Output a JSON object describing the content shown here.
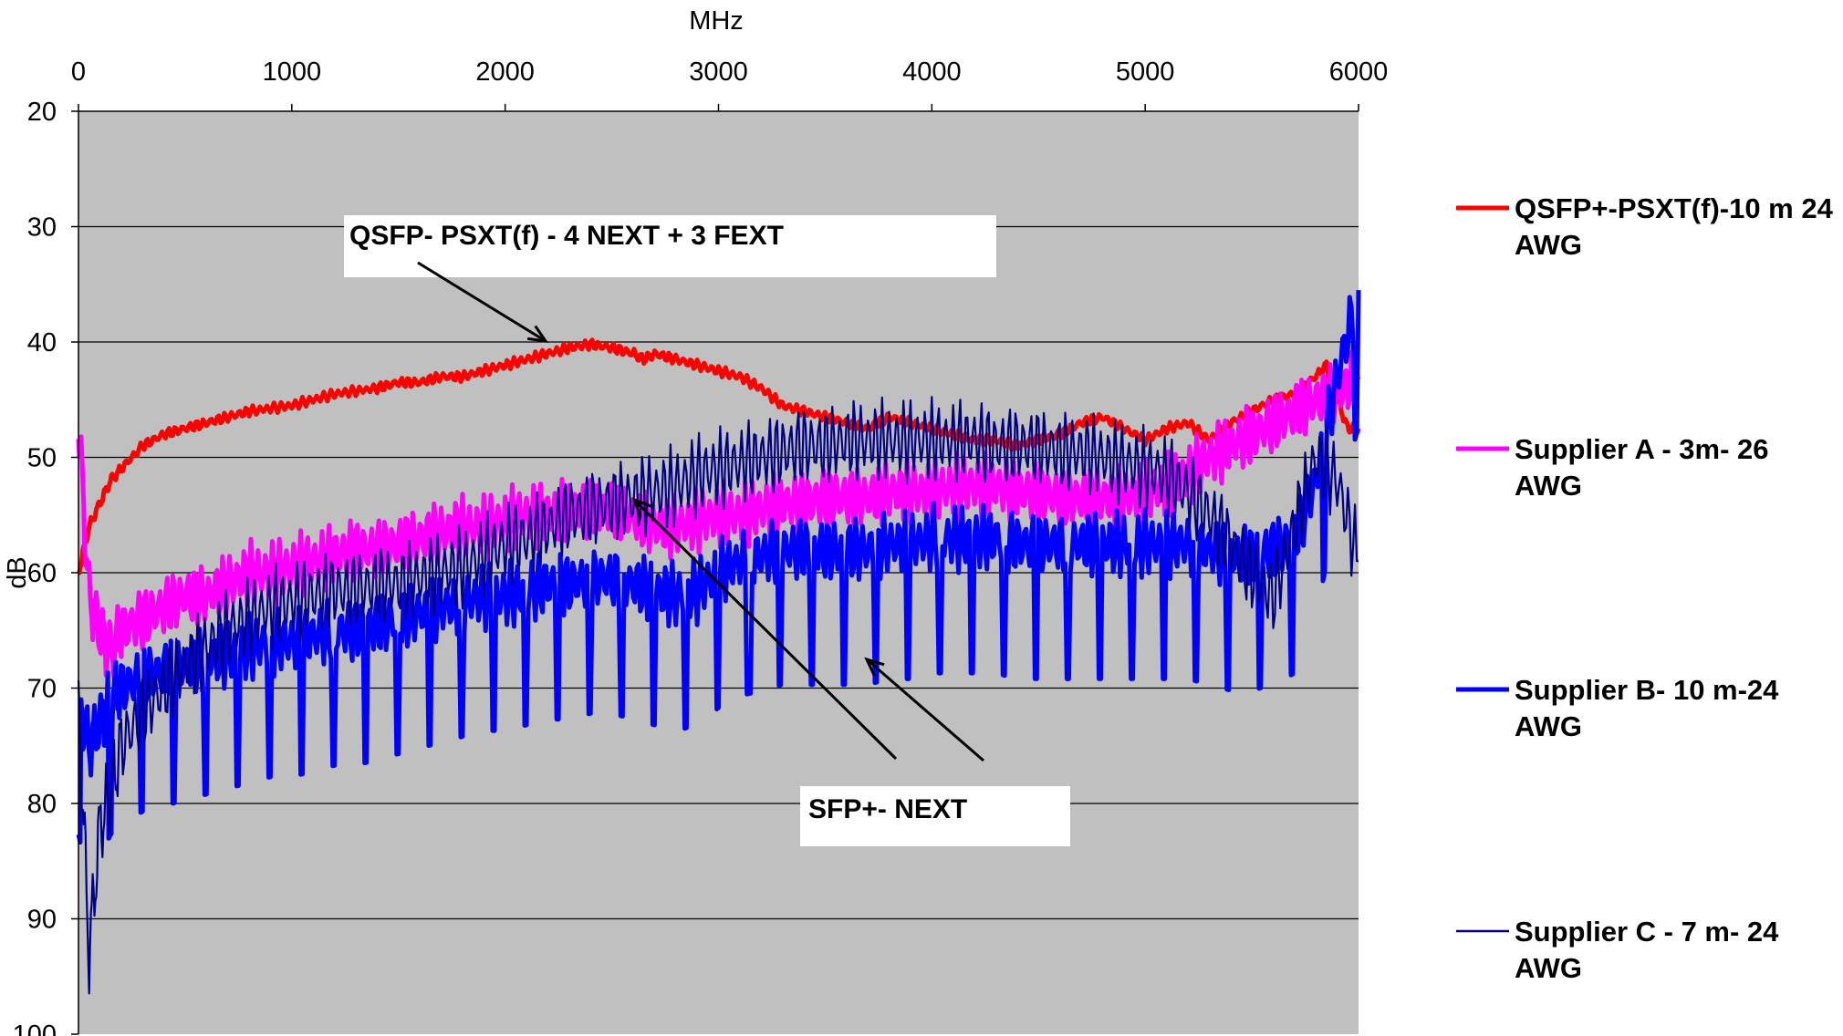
{
  "chart_data": {
    "type": "line",
    "xlabel": "MHz",
    "ylabel": "dB",
    "xlim": [
      0,
      6000
    ],
    "ylim": [
      20,
      100
    ],
    "y_inverted": true,
    "x_axis_position": "top",
    "x_ticks": [
      "0",
      "1000",
      "2000",
      "3000",
      "4000",
      "5000",
      "6000"
    ],
    "y_ticks": [
      "20",
      "30",
      "40",
      "50",
      "60",
      "70",
      "80",
      "90",
      "100"
    ],
    "grid": "horizontal",
    "plot_background": "#c0c0c0",
    "legend_position": "right",
    "series": [
      {
        "name": "QSFP+-PSXT(f)-10 m 24 AWG",
        "color": "#ff0000",
        "x": [
          0,
          50,
          100,
          150,
          200,
          300,
          400,
          500,
          600,
          700,
          800,
          1000,
          1200,
          1400,
          1500,
          1600,
          1700,
          1800,
          1900,
          2000,
          2100,
          2200,
          2300,
          2400,
          2500,
          2600,
          2650,
          2700,
          2800,
          2900,
          3000,
          3100,
          3200,
          3300,
          3400,
          3500,
          3600,
          3700,
          3800,
          3900,
          4000,
          4100,
          4200,
          4300,
          4400,
          4500,
          4600,
          4700,
          4800,
          4900,
          5000,
          5100,
          5200,
          5300,
          5400,
          5500,
          5600,
          5700,
          5800,
          5850,
          5900,
          5950,
          6000
        ],
        "y": [
          60,
          56,
          54,
          52,
          51,
          49,
          48,
          47.5,
          47,
          46.5,
          46,
          45.5,
          44.5,
          44,
          43.5,
          43.5,
          43,
          43,
          42.5,
          42,
          41.5,
          41,
          40.5,
          40.2,
          40.5,
          41,
          41.5,
          41,
          41.5,
          42,
          42.5,
          43,
          44,
          45.5,
          46,
          46.5,
          47,
          47.5,
          46.5,
          47,
          47.5,
          48,
          48.5,
          48.5,
          49,
          48.5,
          48,
          47,
          46.5,
          47.5,
          48.5,
          47.5,
          47,
          48.5,
          47,
          46,
          45,
          44.5,
          43,
          42,
          45,
          47.5,
          47.5
        ]
      },
      {
        "name": "Supplier A - 3m- 26 AWG",
        "color": "#ff00ff",
        "x": [
          0,
          50,
          100,
          150,
          200,
          300,
          400,
          500,
          600,
          700,
          800,
          900,
          1000,
          1100,
          1200,
          1300,
          1400,
          1500,
          1600,
          1700,
          1800,
          1900,
          2000,
          2100,
          2200,
          2300,
          2400,
          2500,
          2600,
          2700,
          2800,
          2900,
          3000,
          3100,
          3200,
          3300,
          3400,
          3500,
          3600,
          3700,
          3800,
          3900,
          4000,
          4100,
          4200,
          4300,
          4400,
          4500,
          4600,
          4700,
          4800,
          4900,
          5000,
          5100,
          5200,
          5300,
          5400,
          5500,
          5600,
          5700,
          5800,
          5900,
          6000
        ],
        "y": [
          47,
          62,
          65,
          67,
          65,
          64,
          63,
          62,
          62,
          61,
          60,
          60,
          59.5,
          59,
          58.5,
          58,
          58,
          57.5,
          57,
          56.5,
          56,
          56,
          55.5,
          55,
          55,
          54.5,
          54.5,
          54.5,
          55,
          56,
          56,
          55.5,
          55,
          55,
          54.5,
          54,
          54,
          53.5,
          53.5,
          53.5,
          53,
          53,
          53,
          52.5,
          52.5,
          52.5,
          53,
          53,
          53.5,
          53.5,
          53.5,
          53.5,
          53,
          52.5,
          51.5,
          50,
          49,
          48,
          47,
          46,
          45,
          44.5,
          43
        ]
      },
      {
        "name": "Supplier B- 10 m-24 AWG",
        "color": "#0000ff",
        "x": [
          0,
          50,
          100,
          150,
          200,
          300,
          400,
          500,
          600,
          700,
          800,
          900,
          1000,
          1100,
          1200,
          1300,
          1400,
          1500,
          1600,
          1700,
          1800,
          1900,
          2000,
          2100,
          2200,
          2300,
          2400,
          2500,
          2600,
          2700,
          2800,
          2900,
          3000,
          3100,
          3200,
          3300,
          3400,
          3500,
          3600,
          3700,
          3800,
          3900,
          4000,
          4100,
          4200,
          4300,
          4400,
          4500,
          4600,
          4700,
          4800,
          4900,
          5000,
          5100,
          5200,
          5300,
          5400,
          5500,
          5600,
          5700,
          5800,
          5900,
          6000
        ],
        "y": [
          71,
          75,
          73,
          71,
          70,
          69,
          68.5,
          68,
          67.5,
          67,
          66.5,
          66,
          66,
          65.5,
          65,
          65,
          64.5,
          64,
          63.5,
          63,
          62.5,
          62,
          62,
          61.5,
          61,
          61,
          60.5,
          60.5,
          61,
          61.5,
          62,
          61.5,
          60,
          59,
          58.5,
          58,
          58,
          58,
          58,
          58,
          57.5,
          57.5,
          57,
          57,
          57,
          57,
          57.5,
          57.5,
          57.5,
          57.5,
          57.5,
          57.5,
          57.5,
          57.5,
          57.5,
          58,
          58.5,
          58.5,
          58,
          57,
          52,
          43,
          35.5
        ]
      },
      {
        "name": "Supplier C - 7 m- 24 AWG",
        "color": "#000080",
        "x": [
          0,
          50,
          100,
          150,
          200,
          300,
          400,
          500,
          600,
          700,
          800,
          900,
          1000,
          1100,
          1200,
          1300,
          1400,
          1500,
          1600,
          1700,
          1800,
          1900,
          2000,
          2100,
          2200,
          2300,
          2400,
          2500,
          2600,
          2700,
          2800,
          2900,
          3000,
          3100,
          3200,
          3300,
          3400,
          3500,
          3600,
          3700,
          3800,
          3900,
          4000,
          4100,
          4200,
          4300,
          4400,
          4500,
          4600,
          4700,
          4800,
          4900,
          5000,
          5100,
          5200,
          5300,
          5400,
          5500,
          5600,
          5700,
          5800,
          5900,
          6000
        ],
        "y": [
          71,
          93,
          82,
          79,
          75,
          72,
          70,
          68,
          66.5,
          65,
          64,
          63,
          62.5,
          62,
          61.5,
          61.5,
          61,
          61,
          60.5,
          60,
          59.5,
          58.5,
          57.5,
          57,
          56,
          55,
          54.5,
          54,
          53.5,
          53,
          52.5,
          51.5,
          51,
          50.5,
          50,
          49.5,
          49,
          49,
          48.5,
          48.5,
          48.5,
          48.5,
          48.5,
          48.5,
          48.5,
          49,
          49,
          49,
          49.5,
          49.5,
          50,
          50.5,
          51,
          51.5,
          53,
          55,
          57.5,
          60,
          62,
          56,
          50,
          52,
          59
        ]
      }
    ],
    "annotations": [
      {
        "text": "QSFP- PSXT(f) - 4 NEXT + 3 FEXT"
      },
      {
        "text": "SFP+- NEXT"
      }
    ]
  }
}
